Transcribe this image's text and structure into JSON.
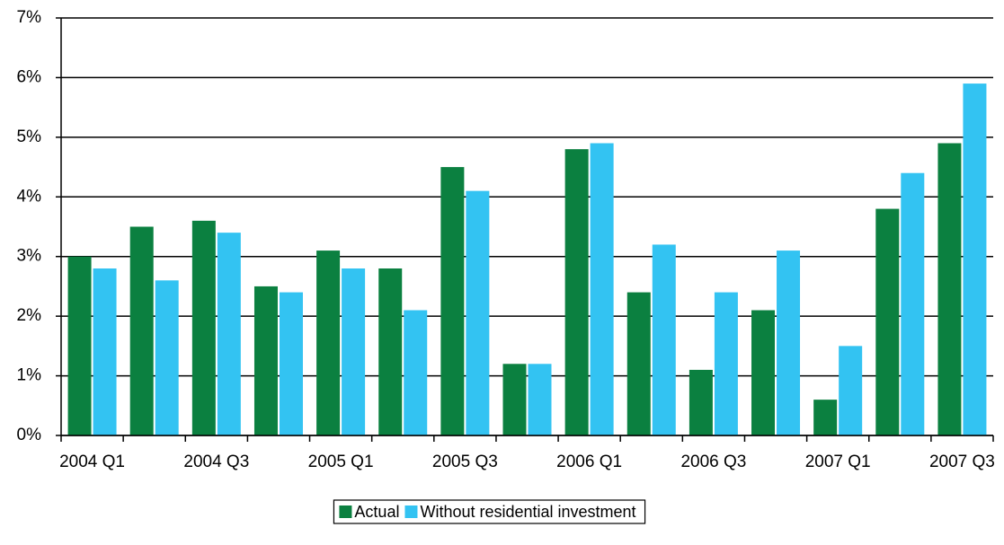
{
  "chart_data": {
    "type": "bar",
    "categories": [
      "2004 Q1",
      null,
      "2004 Q3",
      null,
      "2005 Q1",
      null,
      "2005 Q3",
      null,
      "2006 Q1",
      null,
      "2006 Q3",
      null,
      "2007 Q1",
      null,
      "2007 Q3"
    ],
    "series": [
      {
        "name": "Actual",
        "color": "#0b8040",
        "values": [
          3.0,
          3.5,
          3.6,
          2.5,
          3.1,
          2.8,
          4.5,
          1.2,
          4.8,
          2.4,
          1.1,
          2.1,
          0.6,
          3.8,
          4.9
        ]
      },
      {
        "name": "Without residential investment",
        "color": "#33c3f2",
        "values": [
          2.8,
          2.6,
          3.4,
          2.4,
          2.8,
          2.1,
          4.1,
          1.2,
          4.9,
          3.2,
          2.4,
          3.1,
          1.5,
          4.4,
          5.9
        ]
      }
    ],
    "ylim": [
      0,
      7
    ],
    "yticks": [
      {
        "value": 0,
        "label": "0%"
      },
      {
        "value": 1,
        "label": "1%"
      },
      {
        "value": 2,
        "label": "2%"
      },
      {
        "value": 3,
        "label": "3%"
      },
      {
        "value": 4,
        "label": "4%"
      },
      {
        "value": 5,
        "label": "5%"
      },
      {
        "value": 6,
        "label": "6%"
      },
      {
        "value": 7,
        "label": "7%"
      }
    ],
    "grid": true,
    "legend": "bottom"
  }
}
